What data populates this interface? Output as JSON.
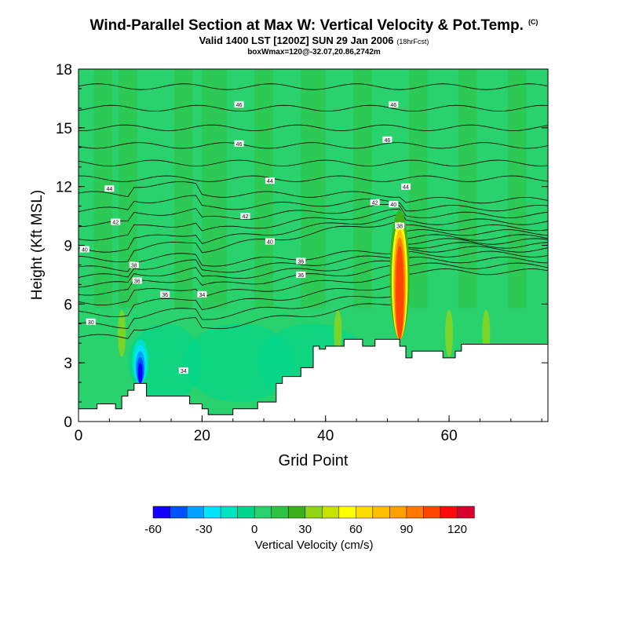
{
  "header": {
    "title": "Wind-Parallel Section at Max W: Vertical Velocity & Pot.Temp.",
    "copyright": "(C)",
    "subtitle": "Valid 1400 LST [1200Z] SUN 29 Jan 2006",
    "subtitle_note": "(18hrFcst)",
    "subtitle2": "boxWmax=120@-32.07,20.86,2742m"
  },
  "chart_data": {
    "type": "heatmap",
    "xlabel": "Grid Point",
    "ylabel": "Height (Kft MSL)",
    "xlim": [
      0,
      76
    ],
    "ylim": [
      0,
      18
    ],
    "x_ticks": [
      0,
      20,
      40,
      60
    ],
    "y_ticks": [
      0,
      3,
      6,
      9,
      12,
      15,
      18
    ],
    "colorbar": {
      "label": "Vertical Velocity (cm/s)",
      "tick_labels": [
        -60,
        -30,
        0,
        30,
        60,
        90,
        120
      ],
      "levels": [
        -60,
        -50,
        -40,
        -30,
        -20,
        -10,
        0,
        10,
        20,
        30,
        40,
        50,
        60,
        70,
        80,
        90,
        100,
        110,
        120,
        130
      ],
      "colors": [
        "#1500ff",
        "#0052ff",
        "#00a2ff",
        "#00e3ff",
        "#00e3c3",
        "#00d78c",
        "#2ad26e",
        "#2dc241",
        "#3bb11c",
        "#8fd418",
        "#c4e300",
        "#ffff00",
        "#ffdc00",
        "#ffbe00",
        "#ffa000",
        "#ff7800",
        "#ff4500",
        "#ff0a0a",
        "#d8002f"
      ]
    },
    "max_updraft": {
      "x": 52,
      "y": 7.8,
      "value": 120
    },
    "max_downdraft": {
      "x": 10,
      "y": 3.0,
      "value": -60
    },
    "terrain": [
      [
        0,
        0.65
      ],
      [
        3,
        0.65
      ],
      [
        3,
        0.9
      ],
      [
        6,
        0.9
      ],
      [
        6,
        0.65
      ],
      [
        7,
        0.65
      ],
      [
        7,
        1.3
      ],
      [
        8,
        1.3
      ],
      [
        8,
        1.6
      ],
      [
        9,
        1.6
      ],
      [
        9,
        1.95
      ],
      [
        11,
        1.95
      ],
      [
        11,
        1.3
      ],
      [
        18,
        1.3
      ],
      [
        18,
        0.9
      ],
      [
        20,
        0.9
      ],
      [
        20,
        0.65
      ],
      [
        21,
        0.65
      ],
      [
        21,
        0.35
      ],
      [
        25,
        0.35
      ],
      [
        25,
        0.65
      ],
      [
        29,
        0.65
      ],
      [
        29,
        1.0
      ],
      [
        32,
        1.0
      ],
      [
        32,
        1.95
      ],
      [
        33,
        1.95
      ],
      [
        33,
        2.3
      ],
      [
        36,
        2.3
      ],
      [
        36,
        2.75
      ],
      [
        38,
        2.75
      ],
      [
        38,
        3.85
      ],
      [
        39,
        3.85
      ],
      [
        39,
        3.7
      ],
      [
        40,
        3.7
      ],
      [
        40,
        3.85
      ],
      [
        43,
        3.85
      ],
      [
        43,
        4.2
      ],
      [
        46,
        4.2
      ],
      [
        46,
        3.85
      ],
      [
        48,
        3.85
      ],
      [
        48,
        4.2
      ],
      [
        52,
        4.2
      ],
      [
        52,
        3.85
      ],
      [
        53,
        3.85
      ],
      [
        53,
        3.25
      ],
      [
        54,
        3.25
      ],
      [
        54,
        3.6
      ],
      [
        59,
        3.6
      ],
      [
        59,
        3.25
      ],
      [
        61,
        3.25
      ],
      [
        61,
        3.6
      ],
      [
        62,
        3.6
      ],
      [
        62,
        3.95
      ],
      [
        76,
        3.95
      ]
    ],
    "theta_labels": [
      {
        "text": "46",
        "x": 26,
        "y": 16.2
      },
      {
        "text": "46",
        "x": 51,
        "y": 16.2
      },
      {
        "text": "46",
        "x": 26,
        "y": 14.2
      },
      {
        "text": "46",
        "x": 50,
        "y": 14.4
      },
      {
        "text": "44",
        "x": 5,
        "y": 11.9
      },
      {
        "text": "44",
        "x": 31,
        "y": 12.3
      },
      {
        "text": "44",
        "x": 53,
        "y": 12.0
      },
      {
        "text": "42",
        "x": 48,
        "y": 11.2
      },
      {
        "text": "40",
        "x": 51,
        "y": 11.1
      },
      {
        "text": "42",
        "x": 6,
        "y": 10.2
      },
      {
        "text": "42",
        "x": 27,
        "y": 10.5
      },
      {
        "text": "38",
        "x": 52,
        "y": 10.0
      },
      {
        "text": "40",
        "x": 1,
        "y": 8.8
      },
      {
        "text": "40",
        "x": 31,
        "y": 9.2
      },
      {
        "text": "38",
        "x": 9,
        "y": 8.0
      },
      {
        "text": "36",
        "x": 36,
        "y": 8.2
      },
      {
        "text": "36",
        "x": 9.5,
        "y": 7.2
      },
      {
        "text": "36",
        "x": 36,
        "y": 7.5
      },
      {
        "text": "36",
        "x": 14,
        "y": 6.5
      },
      {
        "text": "34",
        "x": 20,
        "y": 6.5
      },
      {
        "text": "30",
        "x": 2,
        "y": 5.1
      },
      {
        "text": "34",
        "x": 17,
        "y": 2.6
      }
    ]
  }
}
